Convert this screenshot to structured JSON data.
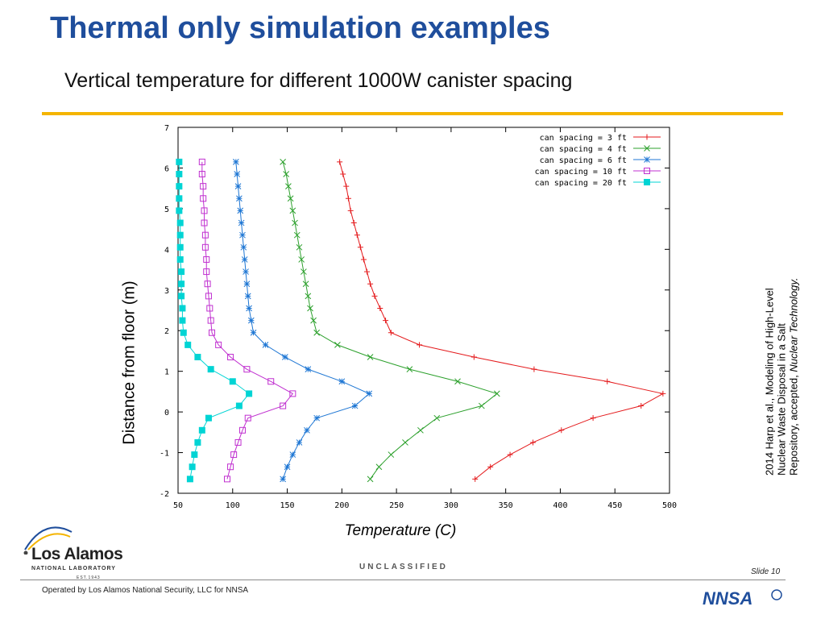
{
  "slide": {
    "title": "Thermal only simulation examples",
    "subtitle": "Vertical temperature for different 1000W canister spacing",
    "citation": {
      "line1": "2014 Harp et al., Modeling of High-Level",
      "line2": "Nuclear Waste Disposal in a Salt",
      "line3_prefix": "Repository, accepted, ",
      "journal": "Nuclear Technology."
    },
    "footer": {
      "classification": "UNCLASSIFIED",
      "slide_number": "Slide 10",
      "operated_by": "Operated by Los Alamos National Security, LLC  for NNSA",
      "logo_name": "Los Alamos",
      "logo_sub": "NATIONAL LABORATORY",
      "logo_est": "EST.1943",
      "nnsa_logo": "NNSA"
    },
    "colors": {
      "title": "#1f4e9c",
      "rule": "#f4b400"
    }
  },
  "chart_data": {
    "type": "line",
    "xlabel": "Temperature (C)",
    "ylabel": "Distance from floor (m)",
    "xlim": [
      50,
      500
    ],
    "ylim": [
      -2,
      7
    ],
    "xticks": [
      50,
      100,
      150,
      200,
      250,
      300,
      350,
      400,
      450,
      500
    ],
    "yticks": [
      -2,
      -1,
      0,
      1,
      2,
      3,
      4,
      5,
      6,
      7
    ],
    "grid": false,
    "legend_position": "top-right",
    "y": [
      -1.65,
      -1.35,
      -1.05,
      -0.75,
      -0.45,
      -0.15,
      0.15,
      0.45,
      0.75,
      1.05,
      1.35,
      1.65,
      1.95,
      2.25,
      2.55,
      2.85,
      3.15,
      3.45,
      3.75,
      4.05,
      4.35,
      4.65,
      4.95,
      5.25,
      5.55,
      5.85,
      6.15
    ],
    "series": [
      {
        "name": "can spacing = 3 ft",
        "color": "#e41a1c",
        "marker": "plus",
        "x": [
          322,
          336,
          354,
          375,
          401,
          430,
          474,
          494,
          443,
          376,
          321,
          271,
          245,
          240,
          235,
          230,
          226,
          223,
          220,
          217,
          214,
          211,
          208,
          206,
          204,
          201,
          198
        ]
      },
      {
        "name": "can spacing = 4 ft",
        "color": "#2ca02c",
        "marker": "x",
        "x": [
          226,
          234,
          245,
          258,
          272,
          287,
          328,
          342,
          306,
          262,
          226,
          196,
          177,
          174,
          171,
          169,
          167,
          165,
          163,
          161,
          159,
          157,
          155,
          153,
          151,
          149,
          146
        ]
      },
      {
        "name": "can spacing = 6 ft",
        "color": "#1f77d4",
        "marker": "asterisk",
        "x": [
          146,
          150,
          155,
          161,
          168,
          177,
          212,
          225,
          200,
          169,
          148,
          130,
          119,
          117,
          115,
          114,
          113,
          112,
          111,
          110,
          109,
          108,
          107,
          106,
          105,
          104,
          103
        ]
      },
      {
        "name": "can spacing = 10 ft",
        "color": "#c030d0",
        "marker": "square-open",
        "x": [
          95,
          98,
          101,
          105,
          109,
          114,
          146,
          155,
          135,
          113,
          98,
          87,
          81,
          80,
          79,
          78,
          77,
          76,
          76,
          75,
          75,
          74,
          74,
          73,
          73,
          72,
          72
        ]
      },
      {
        "name": "can spacing = 20 ft",
        "color": "#00d4d4",
        "marker": "square-filled",
        "x": [
          61,
          63,
          65,
          68,
          72,
          78,
          106,
          115,
          100,
          80,
          68,
          59,
          55,
          54,
          54,
          53,
          53,
          53,
          52,
          52,
          52,
          52,
          51,
          51,
          51,
          51,
          51
        ]
      }
    ]
  }
}
